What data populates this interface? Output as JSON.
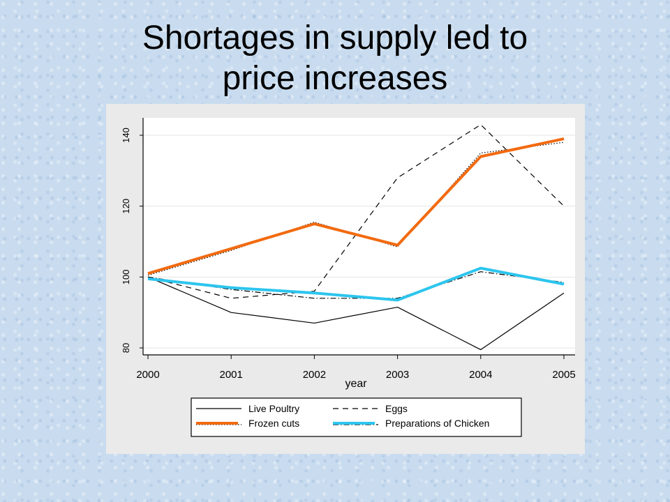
{
  "slide": {
    "title_line1": "Shortages in supply led to",
    "title_line2": "price increases"
  },
  "chart_data": {
    "type": "line",
    "x": [
      2000,
      2001,
      2002,
      2003,
      2004,
      2005
    ],
    "xlabel": "year",
    "ylabel": "",
    "xlim": [
      2000,
      2005
    ],
    "ylim": [
      78,
      145
    ],
    "xticks": [
      "2000",
      "2001",
      "2002",
      "2003",
      "2004",
      "2005"
    ],
    "yticks": [
      "80",
      "100",
      "120",
      "140"
    ],
    "grid": true,
    "legend_position": "bottom",
    "series": [
      {
        "name": "Live Poultry",
        "color": "#000000",
        "dash": "solid",
        "values": [
          100,
          90,
          87,
          91.5,
          79.5,
          95.5
        ]
      },
      {
        "name": "Eggs",
        "color": "#000000",
        "dash": "dashed",
        "values": [
          100,
          94,
          96,
          128,
          143,
          120
        ]
      },
      {
        "name": "Frozen cuts",
        "color": "#f26a10",
        "dash": "thick",
        "values": [
          101,
          108,
          115,
          109,
          134,
          139
        ]
      },
      {
        "name": "Preparations of Chicken",
        "color": "#2cc5ee",
        "dash": "thick",
        "values": [
          99.5,
          97,
          95.5,
          93.5,
          102.5,
          98
        ]
      }
    ],
    "shadow_series": [
      {
        "of": "Frozen cuts",
        "color": "#000000",
        "dash": "dotted",
        "values": [
          100.5,
          107.5,
          115.5,
          108.5,
          135,
          138
        ]
      },
      {
        "of": "Preparations of Chicken",
        "color": "#000000",
        "dash": "dashdot",
        "values": [
          100,
          96.5,
          94,
          94,
          101.5,
          98.5
        ]
      }
    ]
  }
}
